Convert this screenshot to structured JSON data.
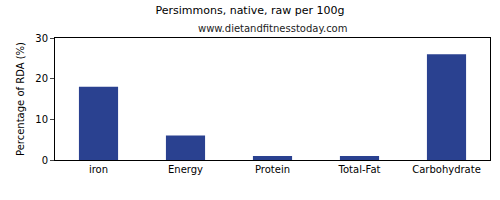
{
  "chart_data": {
    "type": "bar",
    "title": "Persimmons, native, raw per 100g",
    "subtitle": "www.dietandfitnesstoday.com",
    "y_label": "Percentage of RDA (%)",
    "categories": [
      "iron",
      "Energy",
      "Protein",
      "Total-Fat",
      "Carbohydrate"
    ],
    "values": [
      18,
      6,
      1,
      1,
      26
    ],
    "color": "#2a4190",
    "ylim": [
      0,
      30
    ],
    "yticks": [
      0,
      10,
      20,
      30
    ],
    "grid": false
  }
}
